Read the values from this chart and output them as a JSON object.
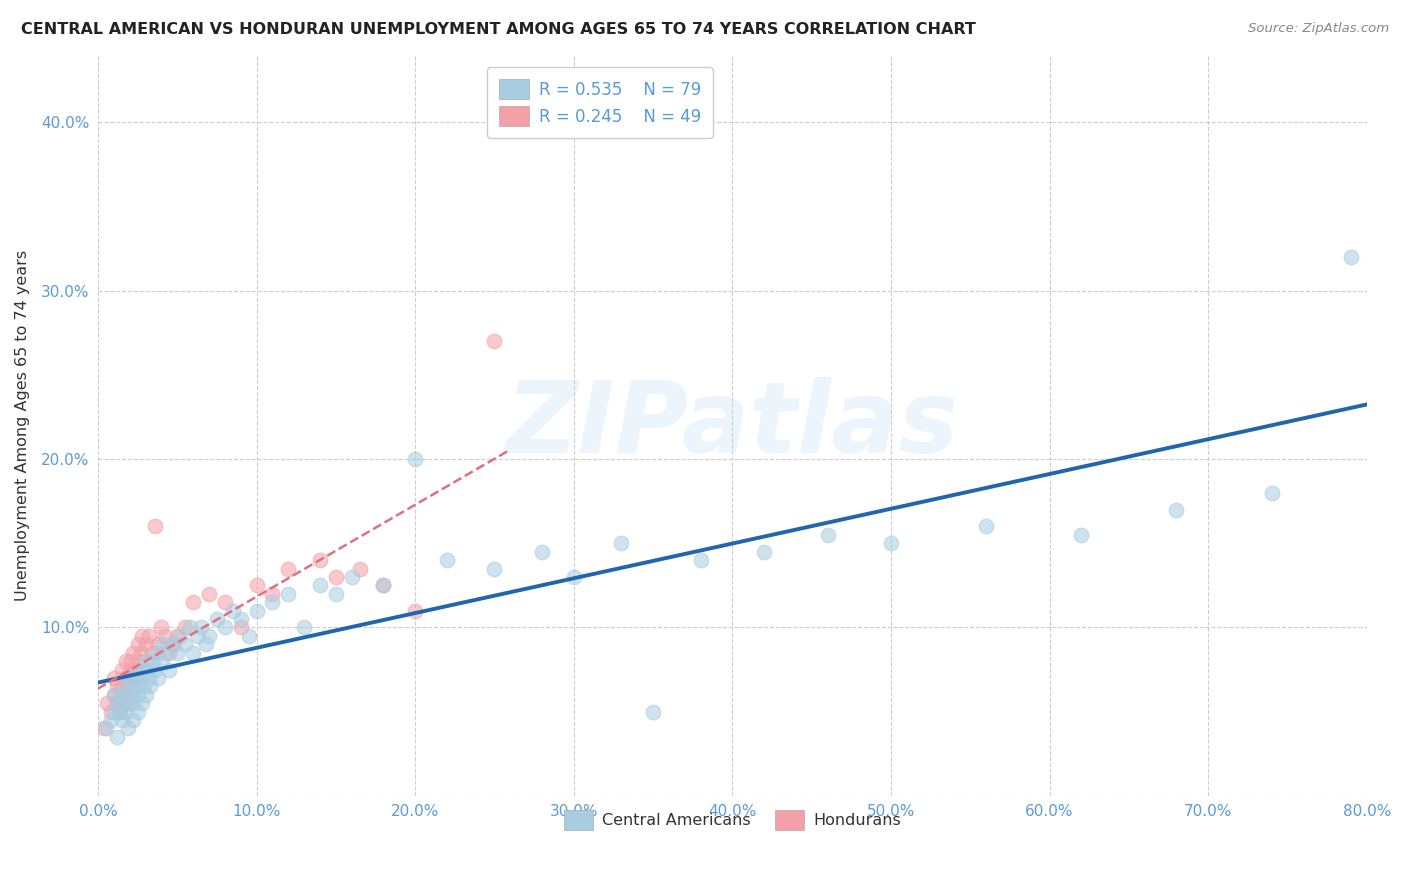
{
  "title": "CENTRAL AMERICAN VS HONDURAN UNEMPLOYMENT AMONG AGES 65 TO 74 YEARS CORRELATION CHART",
  "source_text": "Source: ZipAtlas.com",
  "ylabel": "Unemployment Among Ages 65 to 74 years",
  "xlim": [
    0.0,
    0.8
  ],
  "ylim": [
    0.0,
    0.44
  ],
  "xticks": [
    0.0,
    0.1,
    0.2,
    0.3,
    0.4,
    0.5,
    0.6,
    0.7,
    0.8
  ],
  "xticklabels": [
    "0.0%",
    "10.0%",
    "20.0%",
    "30.0%",
    "40.0%",
    "50.0%",
    "60.0%",
    "70.0%",
    "80.0%"
  ],
  "yticks": [
    0.0,
    0.1,
    0.2,
    0.3,
    0.4
  ],
  "yticklabels": [
    "",
    "10.0%",
    "20.0%",
    "30.0%",
    "40.0%"
  ],
  "legend_ca_r": "R = 0.535",
  "legend_ca_n": "N = 79",
  "legend_ho_r": "R = 0.245",
  "legend_ho_n": "N = 49",
  "ca_color": "#a8cce0",
  "ho_color": "#f4a0a8",
  "ca_line_color": "#2166ac",
  "ho_line_color": "#e07080",
  "watermark_text": "ZIPatlas",
  "background_color": "#ffffff",
  "grid_color": "#c8c8c8",
  "tick_color": "#5b9bd5",
  "title_color": "#222222",
  "ca_scatter_x": [
    0.005,
    0.008,
    0.01,
    0.01,
    0.012,
    0.012,
    0.014,
    0.015,
    0.015,
    0.016,
    0.018,
    0.018,
    0.019,
    0.02,
    0.02,
    0.021,
    0.022,
    0.022,
    0.023,
    0.024,
    0.025,
    0.025,
    0.026,
    0.027,
    0.028,
    0.028,
    0.029,
    0.03,
    0.03,
    0.031,
    0.032,
    0.033,
    0.035,
    0.036,
    0.037,
    0.038,
    0.04,
    0.041,
    0.043,
    0.045,
    0.047,
    0.05,
    0.052,
    0.055,
    0.058,
    0.06,
    0.063,
    0.065,
    0.068,
    0.07,
    0.075,
    0.08,
    0.085,
    0.09,
    0.095,
    0.1,
    0.11,
    0.12,
    0.13,
    0.14,
    0.15,
    0.16,
    0.18,
    0.2,
    0.22,
    0.25,
    0.28,
    0.3,
    0.33,
    0.35,
    0.38,
    0.42,
    0.46,
    0.5,
    0.56,
    0.62,
    0.68,
    0.74,
    0.79
  ],
  "ca_scatter_y": [
    0.04,
    0.045,
    0.05,
    0.06,
    0.055,
    0.035,
    0.05,
    0.06,
    0.045,
    0.055,
    0.05,
    0.065,
    0.04,
    0.055,
    0.07,
    0.06,
    0.045,
    0.065,
    0.055,
    0.07,
    0.05,
    0.06,
    0.065,
    0.07,
    0.055,
    0.075,
    0.065,
    0.08,
    0.06,
    0.075,
    0.07,
    0.065,
    0.08,
    0.075,
    0.085,
    0.07,
    0.08,
    0.09,
    0.085,
    0.075,
    0.09,
    0.085,
    0.095,
    0.09,
    0.1,
    0.085,
    0.095,
    0.1,
    0.09,
    0.095,
    0.105,
    0.1,
    0.11,
    0.105,
    0.095,
    0.11,
    0.115,
    0.12,
    0.1,
    0.125,
    0.12,
    0.13,
    0.125,
    0.2,
    0.14,
    0.135,
    0.145,
    0.13,
    0.15,
    0.05,
    0.14,
    0.145,
    0.155,
    0.15,
    0.16,
    0.155,
    0.17,
    0.18,
    0.32
  ],
  "ho_scatter_x": [
    0.004,
    0.006,
    0.008,
    0.01,
    0.01,
    0.012,
    0.012,
    0.014,
    0.015,
    0.015,
    0.016,
    0.017,
    0.018,
    0.018,
    0.019,
    0.02,
    0.02,
    0.021,
    0.022,
    0.022,
    0.024,
    0.025,
    0.026,
    0.027,
    0.028,
    0.03,
    0.032,
    0.034,
    0.036,
    0.038,
    0.04,
    0.042,
    0.045,
    0.048,
    0.05,
    0.055,
    0.06,
    0.07,
    0.08,
    0.09,
    0.1,
    0.11,
    0.12,
    0.14,
    0.15,
    0.165,
    0.18,
    0.2,
    0.25
  ],
  "ho_scatter_y": [
    0.04,
    0.055,
    0.05,
    0.06,
    0.07,
    0.055,
    0.065,
    0.05,
    0.065,
    0.075,
    0.06,
    0.07,
    0.055,
    0.08,
    0.065,
    0.075,
    0.06,
    0.08,
    0.07,
    0.085,
    0.075,
    0.09,
    0.08,
    0.085,
    0.095,
    0.09,
    0.095,
    0.085,
    0.16,
    0.09,
    0.1,
    0.095,
    0.085,
    0.09,
    0.095,
    0.1,
    0.115,
    0.12,
    0.115,
    0.1,
    0.125,
    0.12,
    0.135,
    0.14,
    0.13,
    0.135,
    0.125,
    0.11,
    0.27
  ],
  "ho_line_x_max": 0.26,
  "ca_line_x_min": 0.0,
  "ca_line_x_max": 0.8
}
